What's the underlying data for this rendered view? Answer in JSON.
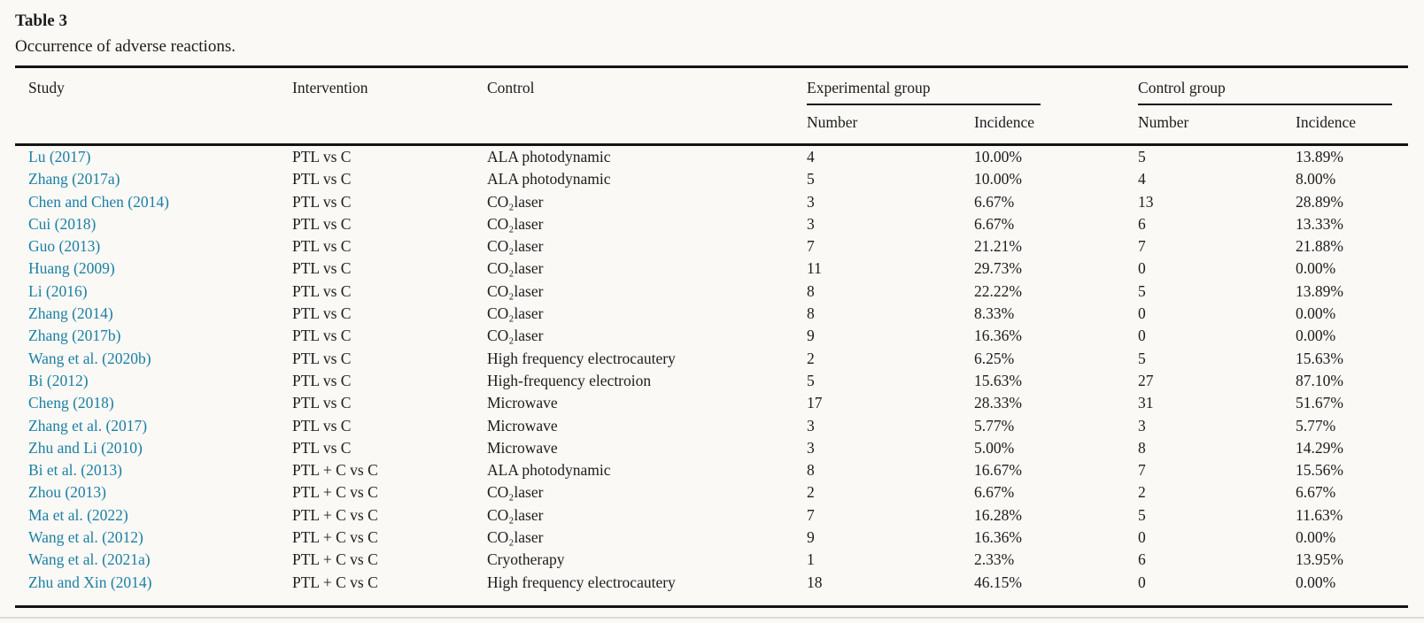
{
  "header": {
    "title": "Table 3",
    "caption": "Occurrence of adverse reactions."
  },
  "table": {
    "col_headers": {
      "study": "Study",
      "intervention": "Intervention",
      "control": "Control",
      "experimental_group": "Experimental group",
      "control_group": "Control group",
      "exp_number": "Number",
      "exp_incidence": "Incidence",
      "ctrl_number": "Number",
      "ctrl_incidence": "Incidence"
    },
    "rows": [
      {
        "study": "Lu (2017)",
        "intervention": "PTL vs C",
        "control": "ALA photodynamic",
        "exp_number": "4",
        "exp_incidence": "10.00%",
        "ctrl_number": "5",
        "ctrl_incidence": "13.89%"
      },
      {
        "study": "Zhang (2017a)",
        "intervention": "PTL vs C",
        "control": "ALA photodynamic",
        "exp_number": "5",
        "exp_incidence": "10.00%",
        "ctrl_number": "4",
        "ctrl_incidence": "8.00%"
      },
      {
        "study": "Chen and Chen (2014)",
        "intervention": "PTL vs C",
        "control": "CO₂laser",
        "exp_number": "3",
        "exp_incidence": "6.67%",
        "ctrl_number": "13",
        "ctrl_incidence": "28.89%"
      },
      {
        "study": "Cui (2018)",
        "intervention": "PTL vs C",
        "control": "CO₂laser",
        "exp_number": "3",
        "exp_incidence": "6.67%",
        "ctrl_number": "6",
        "ctrl_incidence": "13.33%"
      },
      {
        "study": "Guo (2013)",
        "intervention": "PTL vs C",
        "control": "CO₂laser",
        "exp_number": "7",
        "exp_incidence": "21.21%",
        "ctrl_number": "7",
        "ctrl_incidence": "21.88%"
      },
      {
        "study": "Huang (2009)",
        "intervention": "PTL vs C",
        "control": "CO₂laser",
        "exp_number": "11",
        "exp_incidence": "29.73%",
        "ctrl_number": "0",
        "ctrl_incidence": "0.00%"
      },
      {
        "study": "Li (2016)",
        "intervention": "PTL vs C",
        "control": "CO₂laser",
        "exp_number": "8",
        "exp_incidence": "22.22%",
        "ctrl_number": "5",
        "ctrl_incidence": "13.89%"
      },
      {
        "study": "Zhang (2014)",
        "intervention": "PTL vs C",
        "control": "CO₂laser",
        "exp_number": "8",
        "exp_incidence": "8.33%",
        "ctrl_number": "0",
        "ctrl_incidence": "0.00%"
      },
      {
        "study": "Zhang (2017b)",
        "intervention": "PTL vs C",
        "control": "CO₂laser",
        "exp_number": "9",
        "exp_incidence": "16.36%",
        "ctrl_number": "0",
        "ctrl_incidence": "0.00%"
      },
      {
        "study": "Wang et al. (2020b)",
        "intervention": "PTL vs C",
        "control": "High frequency electrocautery",
        "exp_number": "2",
        "exp_incidence": "6.25%",
        "ctrl_number": "5",
        "ctrl_incidence": "15.63%"
      },
      {
        "study": "Bi (2012)",
        "intervention": "PTL vs C",
        "control": "High-frequency electroion",
        "exp_number": "5",
        "exp_incidence": "15.63%",
        "ctrl_number": "27",
        "ctrl_incidence": "87.10%"
      },
      {
        "study": "Cheng (2018)",
        "intervention": "PTL vs C",
        "control": "Microwave",
        "exp_number": "17",
        "exp_incidence": "28.33%",
        "ctrl_number": "31",
        "ctrl_incidence": "51.67%"
      },
      {
        "study": "Zhang et al. (2017)",
        "intervention": "PTL vs C",
        "control": "Microwave",
        "exp_number": "3",
        "exp_incidence": "5.77%",
        "ctrl_number": "3",
        "ctrl_incidence": "5.77%"
      },
      {
        "study": "Zhu and Li (2010)",
        "intervention": "PTL vs C",
        "control": "Microwave",
        "exp_number": "3",
        "exp_incidence": "5.00%",
        "ctrl_number": "8",
        "ctrl_incidence": "14.29%"
      },
      {
        "study": "Bi et al. (2013)",
        "intervention": "PTL + C vs C",
        "control": "ALA photodynamic",
        "exp_number": "8",
        "exp_incidence": "16.67%",
        "ctrl_number": "7",
        "ctrl_incidence": "15.56%"
      },
      {
        "study": "Zhou (2013)",
        "intervention": "PTL + C vs C",
        "control": "CO₂laser",
        "exp_number": "2",
        "exp_incidence": "6.67%",
        "ctrl_number": "2",
        "ctrl_incidence": "6.67%"
      },
      {
        "study": "Ma et al. (2022)",
        "intervention": "PTL + C vs C",
        "control": "CO₂laser",
        "exp_number": "7",
        "exp_incidence": "16.28%",
        "ctrl_number": "5",
        "ctrl_incidence": "11.63%"
      },
      {
        "study": "Wang et al. (2012)",
        "intervention": "PTL + C vs C",
        "control": "CO₂laser",
        "exp_number": "9",
        "exp_incidence": "16.36%",
        "ctrl_number": "0",
        "ctrl_incidence": "0.00%"
      },
      {
        "study": "Wang et al. (2021a)",
        "intervention": "PTL + C vs C",
        "control": "Cryotherapy",
        "exp_number": "1",
        "exp_incidence": "2.33%",
        "ctrl_number": "6",
        "ctrl_incidence": "13.95%"
      },
      {
        "study": "Zhu and Xin (2014)",
        "intervention": "PTL + C vs C",
        "control": "High frequency electrocautery",
        "exp_number": "18",
        "exp_incidence": "46.15%",
        "ctrl_number": "0",
        "ctrl_incidence": "0.00%"
      }
    ]
  },
  "colors": {
    "background": "#faf9f6",
    "text": "#1c1c1c",
    "link": "#1b7fa3",
    "rule": "#141414"
  }
}
